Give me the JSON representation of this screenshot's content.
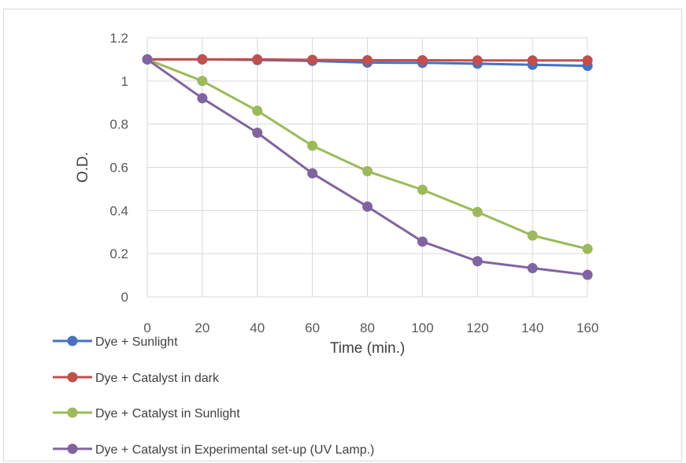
{
  "chart_data": {
    "type": "line",
    "title": "",
    "xlabel": "Time (min.)",
    "ylabel": "O.D.",
    "x": [
      0,
      20,
      40,
      60,
      80,
      100,
      120,
      140,
      160
    ],
    "x_tick_labels": [
      "0",
      "20",
      "40",
      "60",
      "80",
      "100",
      "120",
      "140",
      "160"
    ],
    "y_tick_labels": [
      "0",
      "0.2",
      "0.4",
      "0.6",
      "0.8",
      "1",
      "1.2"
    ],
    "xlim": [
      0,
      160
    ],
    "ylim": [
      0,
      1.2
    ],
    "grid": true,
    "legend_position": "bottom-left",
    "series": [
      {
        "name": "Dye + Sunlight",
        "color": "#4472c4",
        "values": [
          1.1,
          1.1,
          1.097,
          1.093,
          1.085,
          1.084,
          1.08,
          1.075,
          1.07
        ]
      },
      {
        "name": "Dye + Catalyst in dark",
        "color": "#c0504d",
        "values": [
          1.1,
          1.1,
          1.1,
          1.098,
          1.096,
          1.096,
          1.095,
          1.095,
          1.095
        ]
      },
      {
        "name": "Dye + Catalyst in Sunlight",
        "color": "#9bbb59",
        "values": [
          1.1,
          1.0,
          0.862,
          0.7,
          0.582,
          0.496,
          0.393,
          0.284,
          0.222
        ]
      },
      {
        "name": "Dye + Catalyst in Experimental set-up (UV Lamp.)",
        "color": "#8064a2",
        "values": [
          1.1,
          0.92,
          0.76,
          0.572,
          0.418,
          0.256,
          0.165,
          0.133,
          0.102
        ]
      }
    ]
  }
}
